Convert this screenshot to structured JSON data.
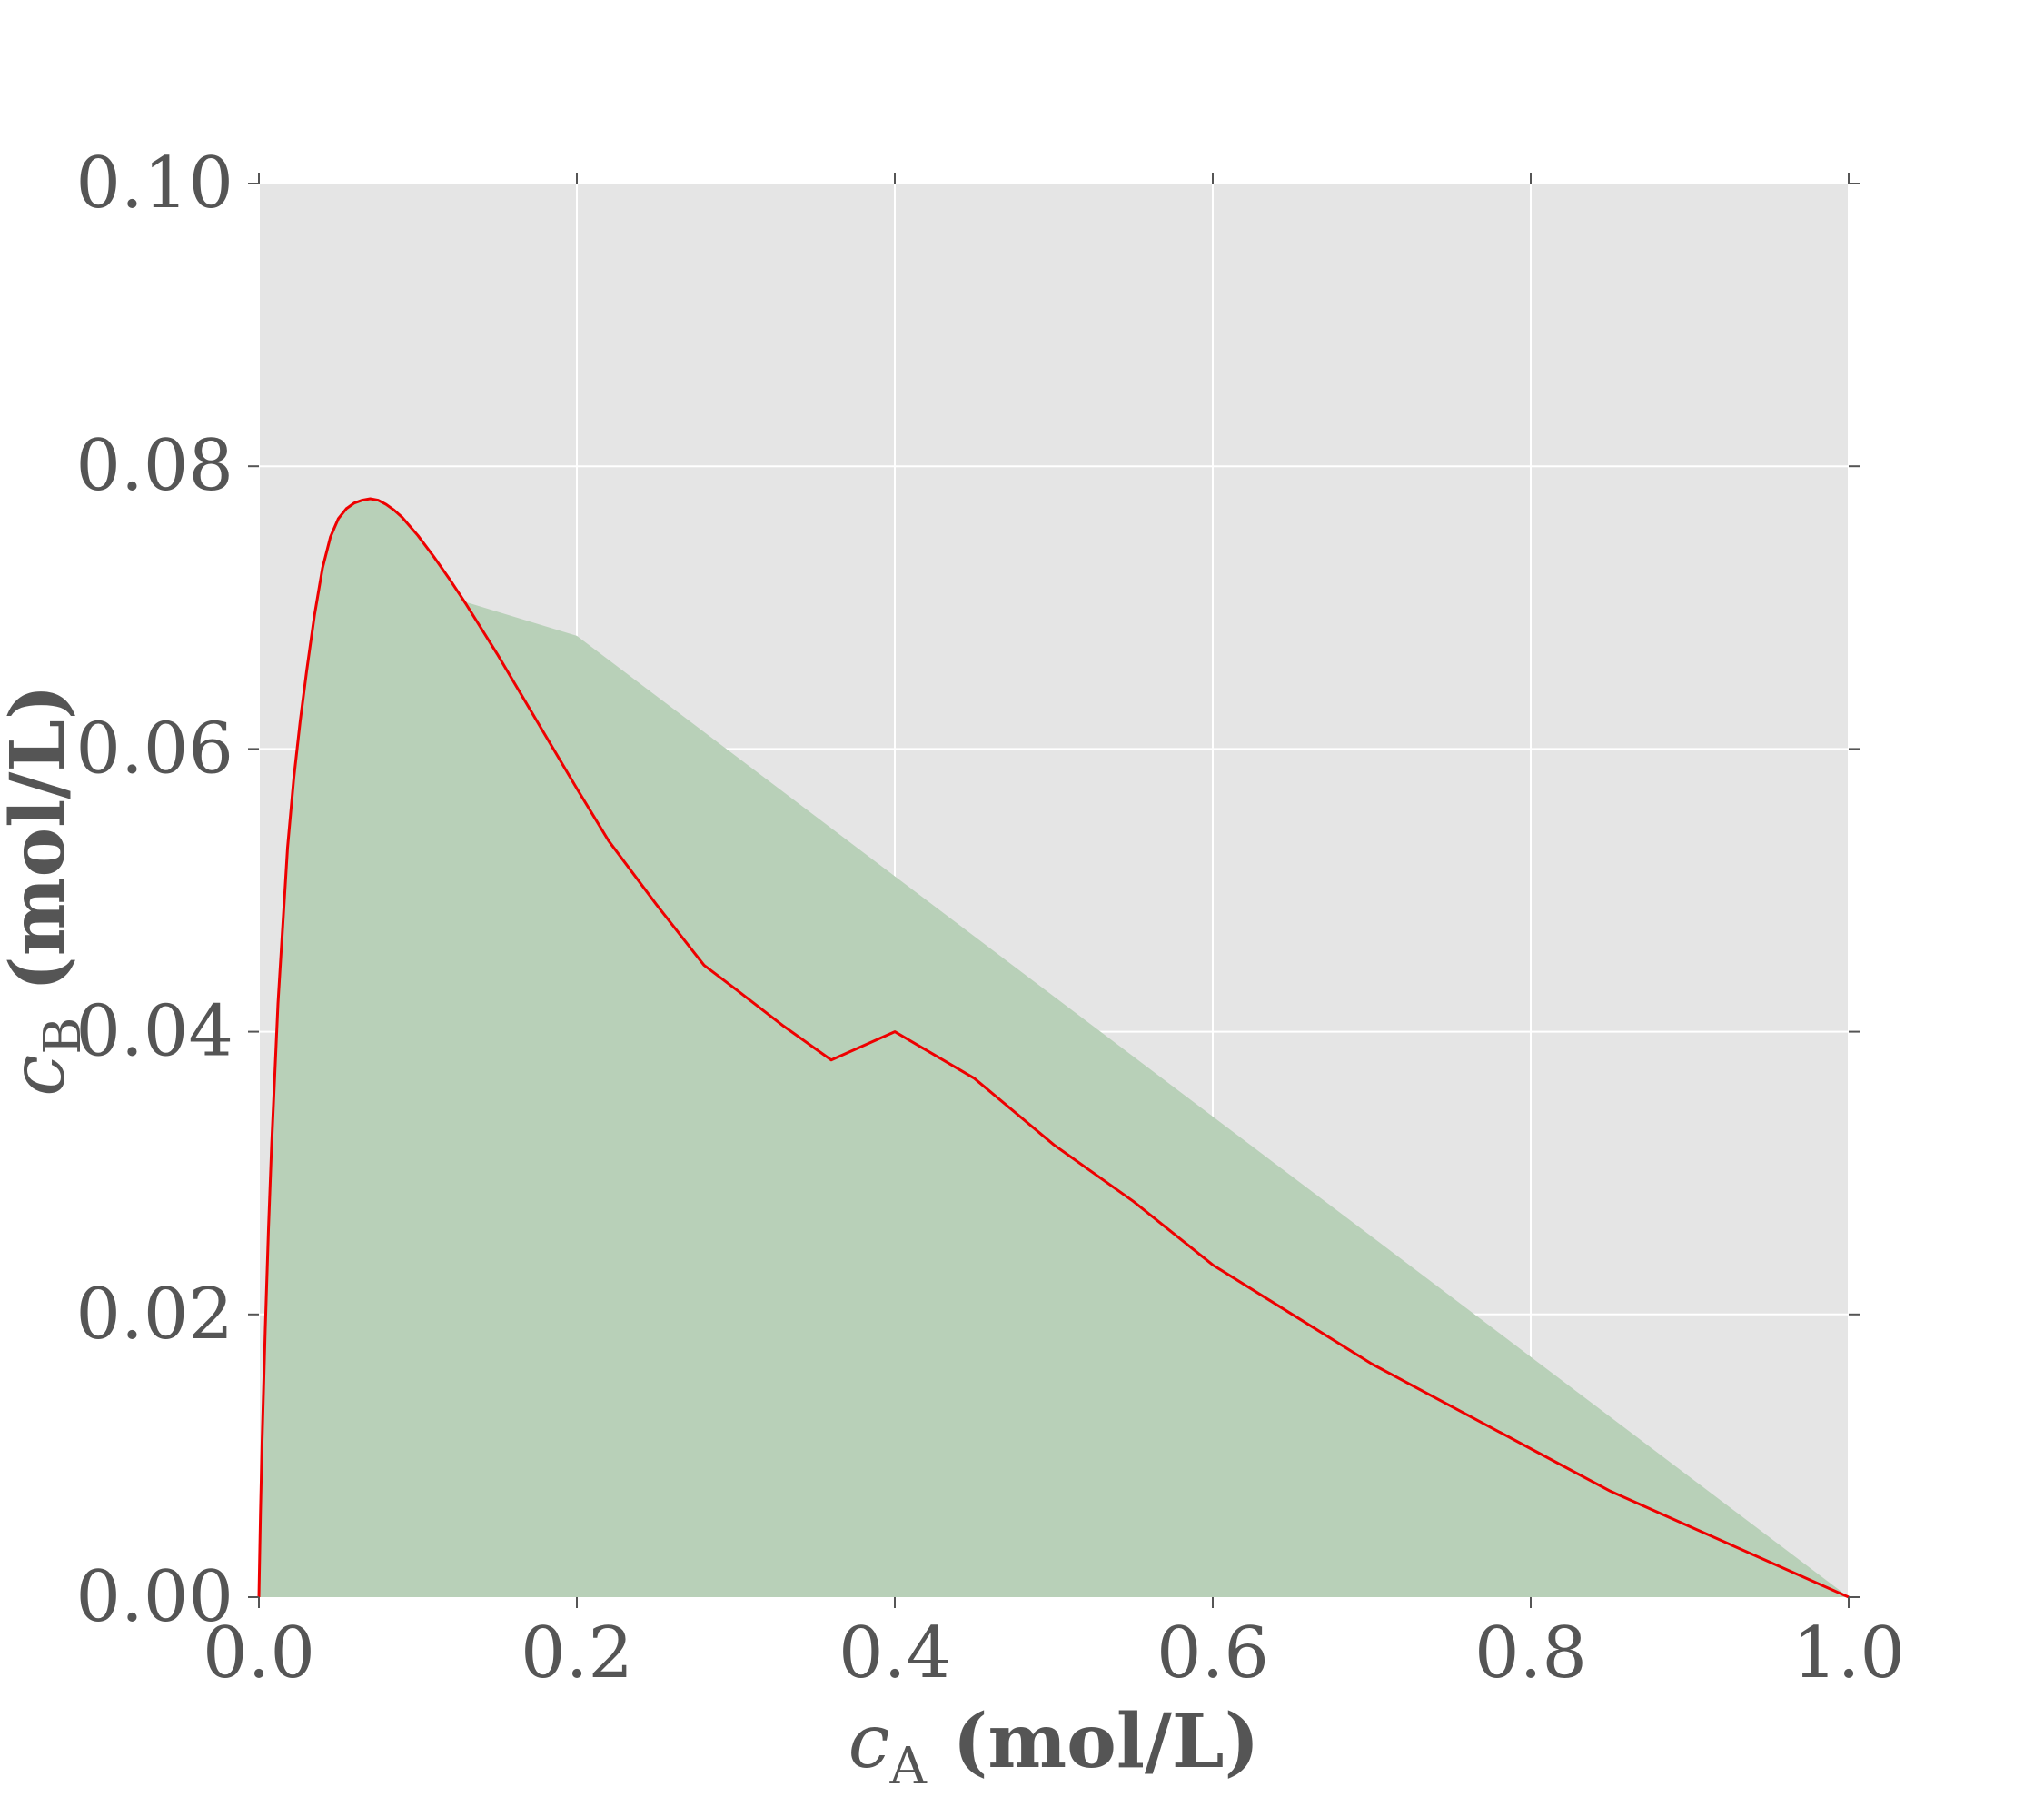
{
  "chart_data": {
    "type": "area",
    "title": "",
    "xlabel": "c_A (mol/L)",
    "ylabel": "c_B (mol/L)",
    "xlabel_parts": {
      "var": "c",
      "sub": "A",
      "unit": "(mol/L)"
    },
    "ylabel_parts": {
      "var": "c",
      "sub": "B",
      "unit": "(mol/L)"
    },
    "xlim": [
      0.0,
      1.0
    ],
    "ylim": [
      0.0,
      0.1
    ],
    "xticks": [
      0.0,
      0.2,
      0.4,
      0.6,
      0.8,
      1.0
    ],
    "xtick_labels": [
      "0.0",
      "0.2",
      "0.4",
      "0.6",
      "0.8",
      "1.0"
    ],
    "yticks": [
      0.0,
      0.02,
      0.04,
      0.06,
      0.08,
      0.1
    ],
    "ytick_labels": [
      "0.00",
      "0.02",
      "0.04",
      "0.06",
      "0.08",
      "0.10"
    ],
    "grid": true,
    "legend": "none",
    "colors": {
      "plot_background": "#e5e5e5",
      "grid": "#ffffff",
      "fill": "#b8d0b8",
      "line": "#ee0000",
      "text": "#555555",
      "tick": "#555555"
    },
    "series": [
      {
        "kind": "line",
        "x": [
          0.0,
          0.001,
          0.002,
          0.004,
          0.006,
          0.008,
          0.01,
          0.012,
          0.015,
          0.018,
          0.022,
          0.026,
          0.03,
          0.035,
          0.04,
          0.045,
          0.05,
          0.055,
          0.06,
          0.065,
          0.07,
          0.075,
          0.08,
          0.085,
          0.09,
          0.1,
          0.11,
          0.12,
          0.13,
          0.14,
          0.15,
          0.16,
          0.18,
          0.2,
          0.22,
          0.25,
          0.28,
          0.3,
          0.33,
          0.36,
          0.4,
          0.45,
          0.5,
          0.55,
          0.6,
          0.65,
          0.7,
          0.75,
          0.8,
          0.85,
          0.9,
          0.95,
          1.0
        ],
        "y": [
          0.0,
          0.006,
          0.011,
          0.019,
          0.026,
          0.032,
          0.037,
          0.042,
          0.0475,
          0.053,
          0.058,
          0.062,
          0.0655,
          0.0695,
          0.0728,
          0.075,
          0.0763,
          0.077,
          0.0774,
          0.0776,
          0.0777,
          0.0776,
          0.0773,
          0.0769,
          0.0764,
          0.0751,
          0.0736,
          0.072,
          0.0703,
          0.0685,
          0.0667,
          0.0648,
          0.061,
          0.0572,
          0.0535,
          0.049,
          0.0447,
          0.043,
          0.0404,
          0.038,
          0.04,
          0.0367,
          0.032,
          0.028,
          0.0235,
          0.02,
          0.0165,
          0.0135,
          0.0105,
          0.0075,
          0.005,
          0.0025,
          0.0
        ]
      },
      {
        "kind": "fill",
        "x": [
          0.0,
          0.001,
          0.002,
          0.004,
          0.006,
          0.008,
          0.01,
          0.012,
          0.015,
          0.018,
          0.022,
          0.026,
          0.03,
          0.035,
          0.04,
          0.045,
          0.05,
          0.055,
          0.06,
          0.065,
          0.07,
          0.075,
          0.08,
          0.085,
          0.09,
          0.1,
          0.11,
          0.12,
          0.13,
          0.2,
          0.4,
          0.6,
          0.8,
          1.0
        ],
        "y": [
          0.0,
          0.006,
          0.011,
          0.019,
          0.026,
          0.032,
          0.037,
          0.042,
          0.0475,
          0.053,
          0.058,
          0.062,
          0.0655,
          0.0695,
          0.0728,
          0.075,
          0.0763,
          0.077,
          0.0774,
          0.0776,
          0.0777,
          0.0776,
          0.0773,
          0.0769,
          0.0764,
          0.0751,
          0.0736,
          0.072,
          0.0704,
          0.068,
          0.051,
          0.034,
          0.017,
          0.0
        ]
      }
    ]
  }
}
